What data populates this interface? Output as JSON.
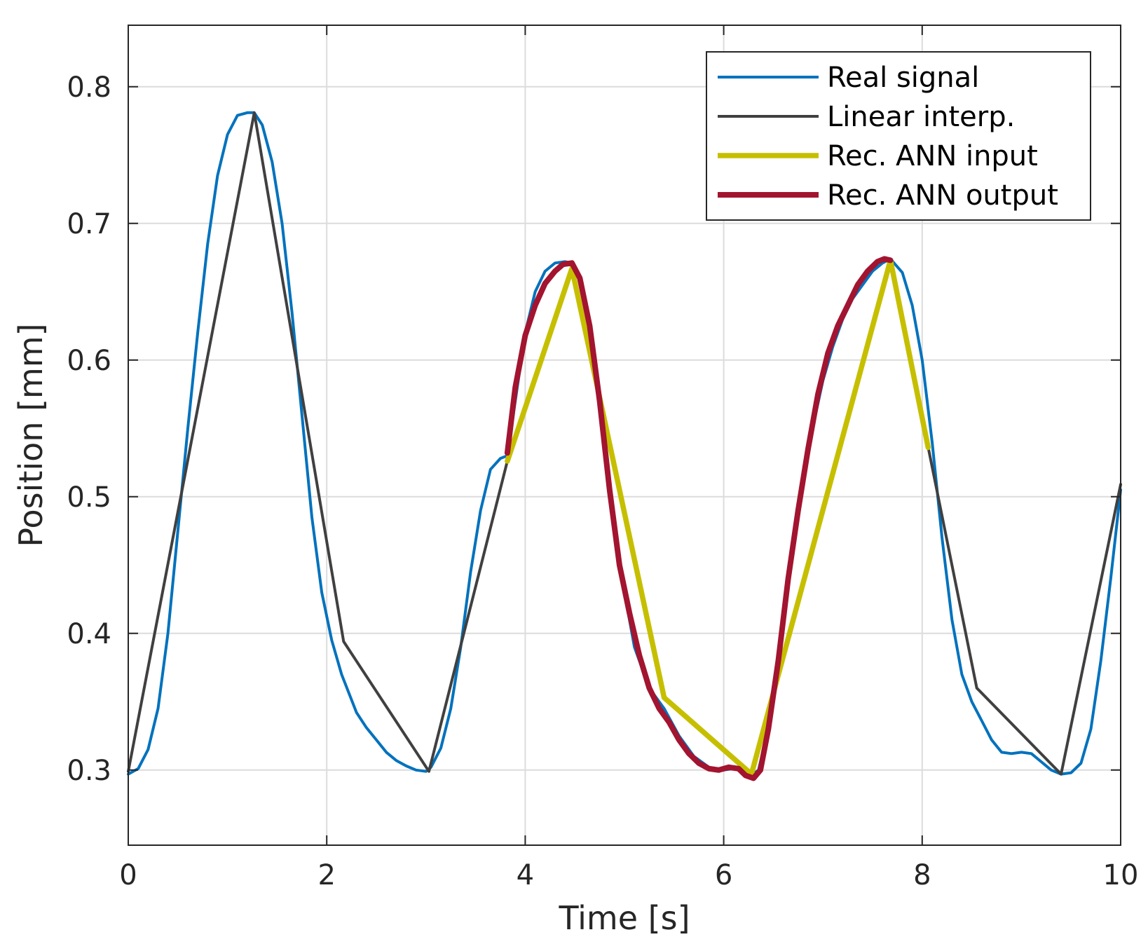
{
  "chart_data": {
    "type": "line",
    "title": "",
    "xlabel": "Time [s]",
    "ylabel": "Position [mm]",
    "xlim": [
      0,
      10
    ],
    "ylim": [
      0.245,
      0.845
    ],
    "xticks": [
      0,
      2,
      4,
      6,
      8,
      10
    ],
    "xtick_labels": [
      "0",
      "2",
      "4",
      "6",
      "8",
      "10"
    ],
    "yticks": [
      0.3,
      0.4,
      0.5,
      0.6,
      0.7,
      0.8
    ],
    "ytick_labels": [
      "0.3",
      "0.4",
      "0.5",
      "0.6",
      "0.7",
      "0.8"
    ],
    "grid": true,
    "legend_position": "top-right",
    "series": [
      {
        "name": "Real signal",
        "color": "#0072BD",
        "x": [
          0,
          0.1,
          0.2,
          0.3,
          0.4,
          0.5,
          0.6,
          0.7,
          0.8,
          0.9,
          1.0,
          1.1,
          1.2,
          1.27,
          1.35,
          1.45,
          1.55,
          1.65,
          1.75,
          1.85,
          1.95,
          2.05,
          2.15,
          2.3,
          2.4,
          2.5,
          2.6,
          2.7,
          2.8,
          2.9,
          3.0,
          3.05,
          3.15,
          3.25,
          3.35,
          3.45,
          3.55,
          3.65,
          3.75,
          3.82,
          3.9,
          4.0,
          4.1,
          4.2,
          4.3,
          4.4,
          4.47,
          4.55,
          4.65,
          4.75,
          4.85,
          4.95,
          5.1,
          5.25,
          5.4,
          5.55,
          5.7,
          5.85,
          6.0,
          6.1,
          6.2,
          6.28,
          6.35,
          6.45,
          6.55,
          6.65,
          6.75,
          6.85,
          7.0,
          7.1,
          7.2,
          7.3,
          7.4,
          7.5,
          7.6,
          7.68,
          7.8,
          7.9,
          8.0,
          8.1,
          8.2,
          8.3,
          8.4,
          8.5,
          8.6,
          8.7,
          8.8,
          8.9,
          9.0,
          9.1,
          9.2,
          9.3,
          9.4,
          9.5,
          9.6,
          9.7,
          9.8,
          9.9,
          10.0
        ],
        "y": [
          0.297,
          0.301,
          0.315,
          0.345,
          0.4,
          0.475,
          0.55,
          0.62,
          0.685,
          0.735,
          0.765,
          0.779,
          0.781,
          0.781,
          0.772,
          0.745,
          0.7,
          0.635,
          0.56,
          0.485,
          0.43,
          0.395,
          0.37,
          0.342,
          0.331,
          0.322,
          0.313,
          0.307,
          0.303,
          0.3,
          0.299,
          0.302,
          0.316,
          0.345,
          0.39,
          0.445,
          0.49,
          0.52,
          0.528,
          0.53,
          0.57,
          0.62,
          0.65,
          0.665,
          0.671,
          0.672,
          0.671,
          0.66,
          0.625,
          0.57,
          0.505,
          0.45,
          0.39,
          0.36,
          0.345,
          0.325,
          0.31,
          0.302,
          0.3,
          0.301,
          0.299,
          0.296,
          0.3,
          0.33,
          0.38,
          0.44,
          0.49,
          0.535,
          0.585,
          0.61,
          0.63,
          0.645,
          0.655,
          0.665,
          0.671,
          0.674,
          0.664,
          0.64,
          0.6,
          0.54,
          0.47,
          0.41,
          0.37,
          0.35,
          0.336,
          0.322,
          0.313,
          0.312,
          0.313,
          0.312,
          0.306,
          0.3,
          0.297,
          0.298,
          0.305,
          0.33,
          0.38,
          0.44,
          0.505
        ]
      },
      {
        "name": "Linear interp.",
        "color": "#404040",
        "x": [
          0,
          1.27,
          2.17,
          3.03,
          3.82,
          4.47,
          5.4,
          6.28,
          7.68,
          8.55,
          9.4,
          10.0
        ],
        "y": [
          0.299,
          0.781,
          0.394,
          0.299,
          0.526,
          0.667,
          0.353,
          0.297,
          0.673,
          0.36,
          0.297,
          0.509
        ]
      },
      {
        "name": "Rec. ANN input",
        "color": "#C6BF00",
        "x": [
          3.82,
          4.47,
          5.4,
          6.28,
          7.68,
          8.06
        ],
        "y": [
          0.526,
          0.667,
          0.353,
          0.297,
          0.673,
          0.536
        ]
      },
      {
        "name": "Rec. ANN output",
        "color": "#A2142F",
        "x": [
          3.82,
          3.9,
          4.0,
          4.1,
          4.2,
          4.3,
          4.38,
          4.47,
          4.55,
          4.65,
          4.75,
          4.85,
          4.95,
          5.05,
          5.15,
          5.25,
          5.35,
          5.45,
          5.55,
          5.65,
          5.75,
          5.85,
          5.95,
          6.05,
          6.15,
          6.22,
          6.3,
          6.37,
          6.45,
          6.55,
          6.65,
          6.75,
          6.85,
          6.95,
          7.05,
          7.15,
          7.25,
          7.35,
          7.45,
          7.55,
          7.62,
          7.68
        ],
        "y": [
          0.532,
          0.58,
          0.618,
          0.64,
          0.656,
          0.665,
          0.67,
          0.671,
          0.66,
          0.625,
          0.57,
          0.505,
          0.45,
          0.415,
          0.384,
          0.36,
          0.345,
          0.335,
          0.322,
          0.312,
          0.305,
          0.301,
          0.3,
          0.302,
          0.301,
          0.296,
          0.294,
          0.3,
          0.33,
          0.38,
          0.44,
          0.49,
          0.535,
          0.575,
          0.605,
          0.625,
          0.64,
          0.655,
          0.665,
          0.672,
          0.674,
          0.673
        ]
      }
    ]
  }
}
